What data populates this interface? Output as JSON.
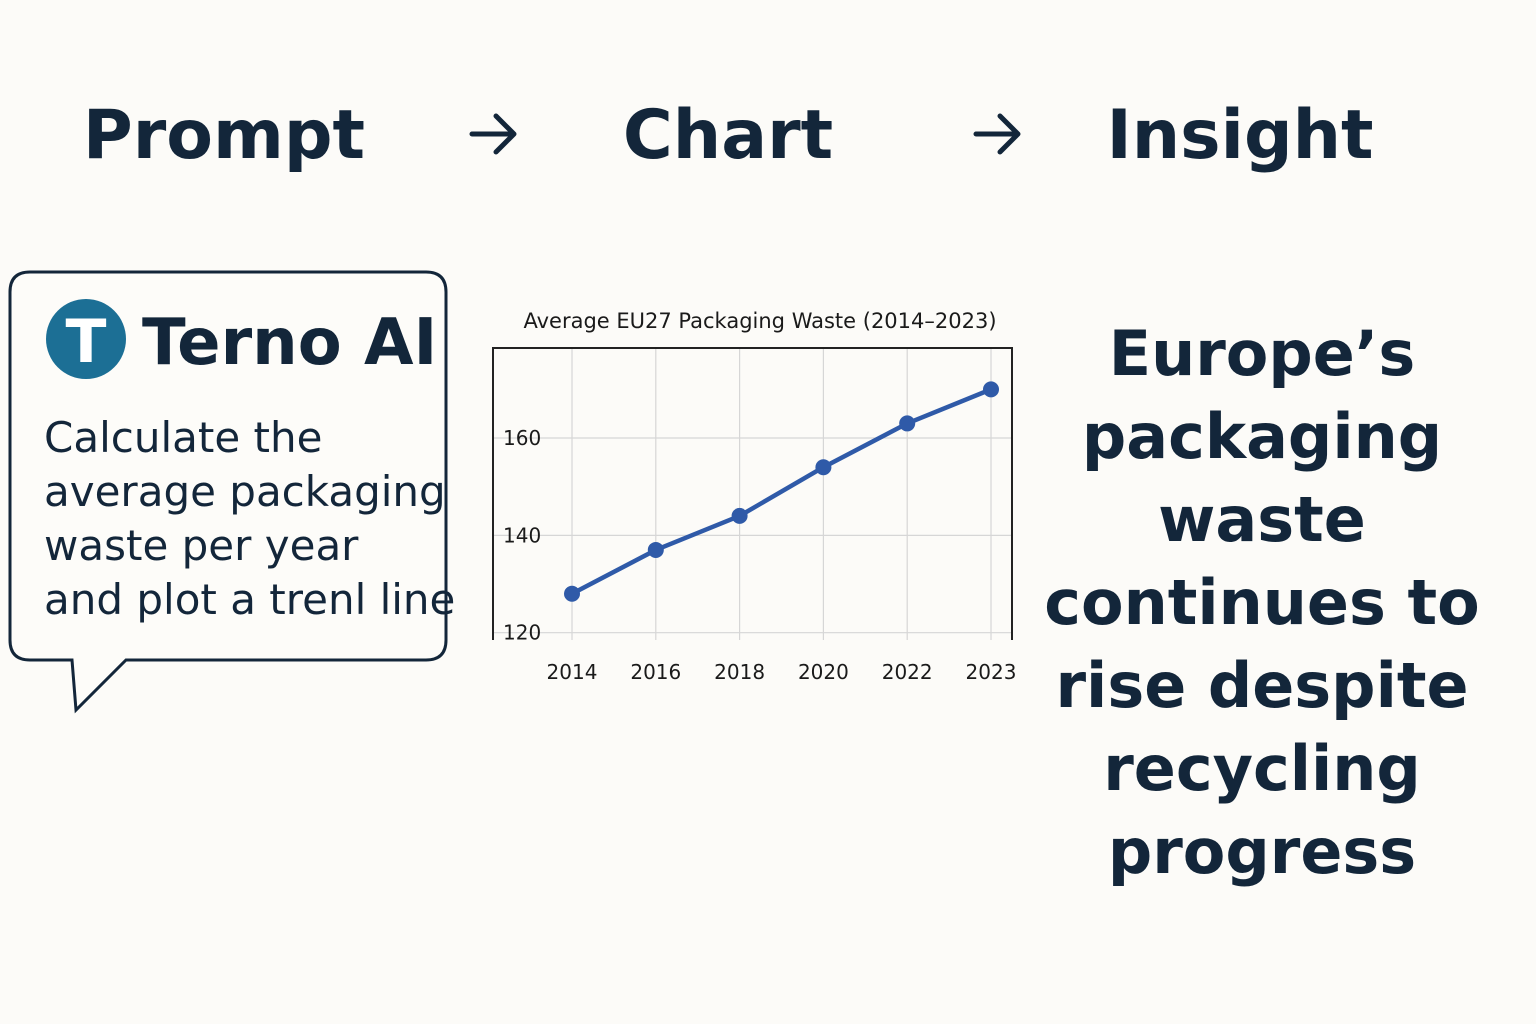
{
  "header": {
    "steps": [
      "Prompt",
      "Chart",
      "Insight"
    ]
  },
  "prompt": {
    "logo": "T",
    "brand": "Terno AI",
    "lines": [
      "Calculate the",
      "average packaging",
      "waste per year",
      "and plot a trenl line"
    ]
  },
  "chart_data": {
    "type": "line",
    "title": "Average EU27 Packaging Waste (2014–2023)",
    "categories": [
      "2014",
      "2016",
      "2018",
      "2020",
      "2022",
      "2023"
    ],
    "values": [
      128,
      137,
      144,
      154,
      163,
      170
    ],
    "color": "#2f5aa8",
    "ylim": [
      118.5,
      178.5
    ],
    "yticks": [
      120,
      140,
      160
    ],
    "grid": true
  },
  "insight": {
    "lines": [
      "Europe’s",
      "packaging",
      "waste",
      "continues to",
      "rise despite",
      "recycling",
      "progress"
    ]
  }
}
